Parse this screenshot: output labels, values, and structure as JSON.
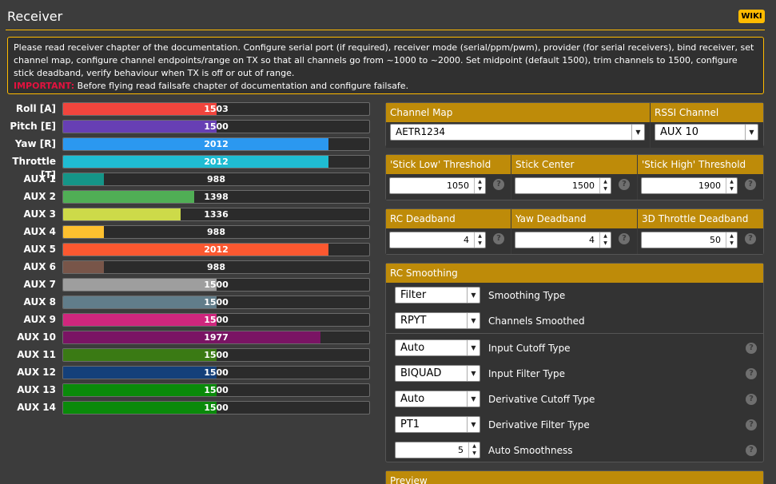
{
  "header": {
    "title": "Receiver",
    "wiki_label": "WIKI"
  },
  "note": {
    "text": "Please read receiver chapter of the documentation. Configure serial port (if required), receiver mode (serial/ppm/pwm), provider (for serial receivers), bind receiver, set channel map, configure channel endpoints/range on TX so that all channels go from ~1000 to ~2000. Set midpoint (default 1500), trim channels to 1500, configure stick deadband, verify behaviour when TX is off or out of range.",
    "important_label": "IMPORTANT:",
    "important_text": "Before flying read failsafe chapter of documentation and configure failsafe."
  },
  "channels": [
    {
      "label": "Roll [A]",
      "value": "1503",
      "color": "#f1453d"
    },
    {
      "label": "Pitch [E]",
      "value": "1500",
      "color": "#673fb4"
    },
    {
      "label": "Yaw [R]",
      "value": "2012",
      "color": "#2b98f0"
    },
    {
      "label": "Throttle [T]",
      "value": "2012",
      "color": "#1fbcd2"
    },
    {
      "label": "AUX 1",
      "value": "988",
      "color": "#159588"
    },
    {
      "label": "AUX 2",
      "value": "1398",
      "color": "#50ae55"
    },
    {
      "label": "AUX 3",
      "value": "1336",
      "color": "#cdda49"
    },
    {
      "label": "AUX 4",
      "value": "988",
      "color": "#fdc02f"
    },
    {
      "label": "AUX 5",
      "value": "2012",
      "color": "#fc5830"
    },
    {
      "label": "AUX 6",
      "value": "988",
      "color": "#785549"
    },
    {
      "label": "AUX 7",
      "value": "1500",
      "color": "#9e9e9e"
    },
    {
      "label": "AUX 8",
      "value": "1500",
      "color": "#617d8a"
    },
    {
      "label": "AUX 9",
      "value": "1500",
      "color": "#cf267d"
    },
    {
      "label": "AUX 10",
      "value": "1977",
      "color": "#7a1464"
    },
    {
      "label": "AUX 11",
      "value": "1500",
      "color": "#3a7a14"
    },
    {
      "label": "AUX 12",
      "value": "1500",
      "color": "#14407a"
    },
    {
      "label": "AUX 13",
      "value": "1500",
      "color": "#0a8a0a"
    },
    {
      "label": "AUX 14",
      "value": "1500",
      "color": "#0a8a0a"
    }
  ],
  "channel_map": {
    "label": "Channel Map",
    "value": "AETR1234"
  },
  "rssi": {
    "label": "RSSI Channel",
    "value": "AUX 10"
  },
  "sticks": {
    "low": {
      "label": "'Stick Low' Threshold",
      "value": "1050"
    },
    "center": {
      "label": "Stick Center",
      "value": "1500"
    },
    "high": {
      "label": "'Stick High' Threshold",
      "value": "1900"
    }
  },
  "deadband": {
    "rc": {
      "label": "RC Deadband",
      "value": "4"
    },
    "yaw": {
      "label": "Yaw Deadband",
      "value": "4"
    },
    "throttle3d": {
      "label": "3D Throttle Deadband",
      "value": "50"
    }
  },
  "smoothing": {
    "title": "RC Smoothing",
    "rows": [
      {
        "label": "Smoothing Type",
        "value": "Filter",
        "kind": "select",
        "help": false
      },
      {
        "label": "Channels Smoothed",
        "value": "RPYT",
        "kind": "select",
        "help": false
      },
      {
        "label": "Input Cutoff Type",
        "value": "Auto",
        "kind": "select",
        "help": true
      },
      {
        "label": "Input Filter Type",
        "value": "BIQUAD",
        "kind": "select",
        "help": true
      },
      {
        "label": "Derivative Cutoff Type",
        "value": "Auto",
        "kind": "select",
        "help": true
      },
      {
        "label": "Derivative Filter Type",
        "value": "PT1",
        "kind": "select",
        "help": true
      },
      {
        "label": "Auto Smoothness",
        "value": "5",
        "kind": "number",
        "help": true
      }
    ]
  },
  "preview": {
    "title": "Preview"
  },
  "icons": {
    "help": "help-icon",
    "caret": "chevron-down-icon",
    "spin": "spinner-arrows-icon"
  }
}
